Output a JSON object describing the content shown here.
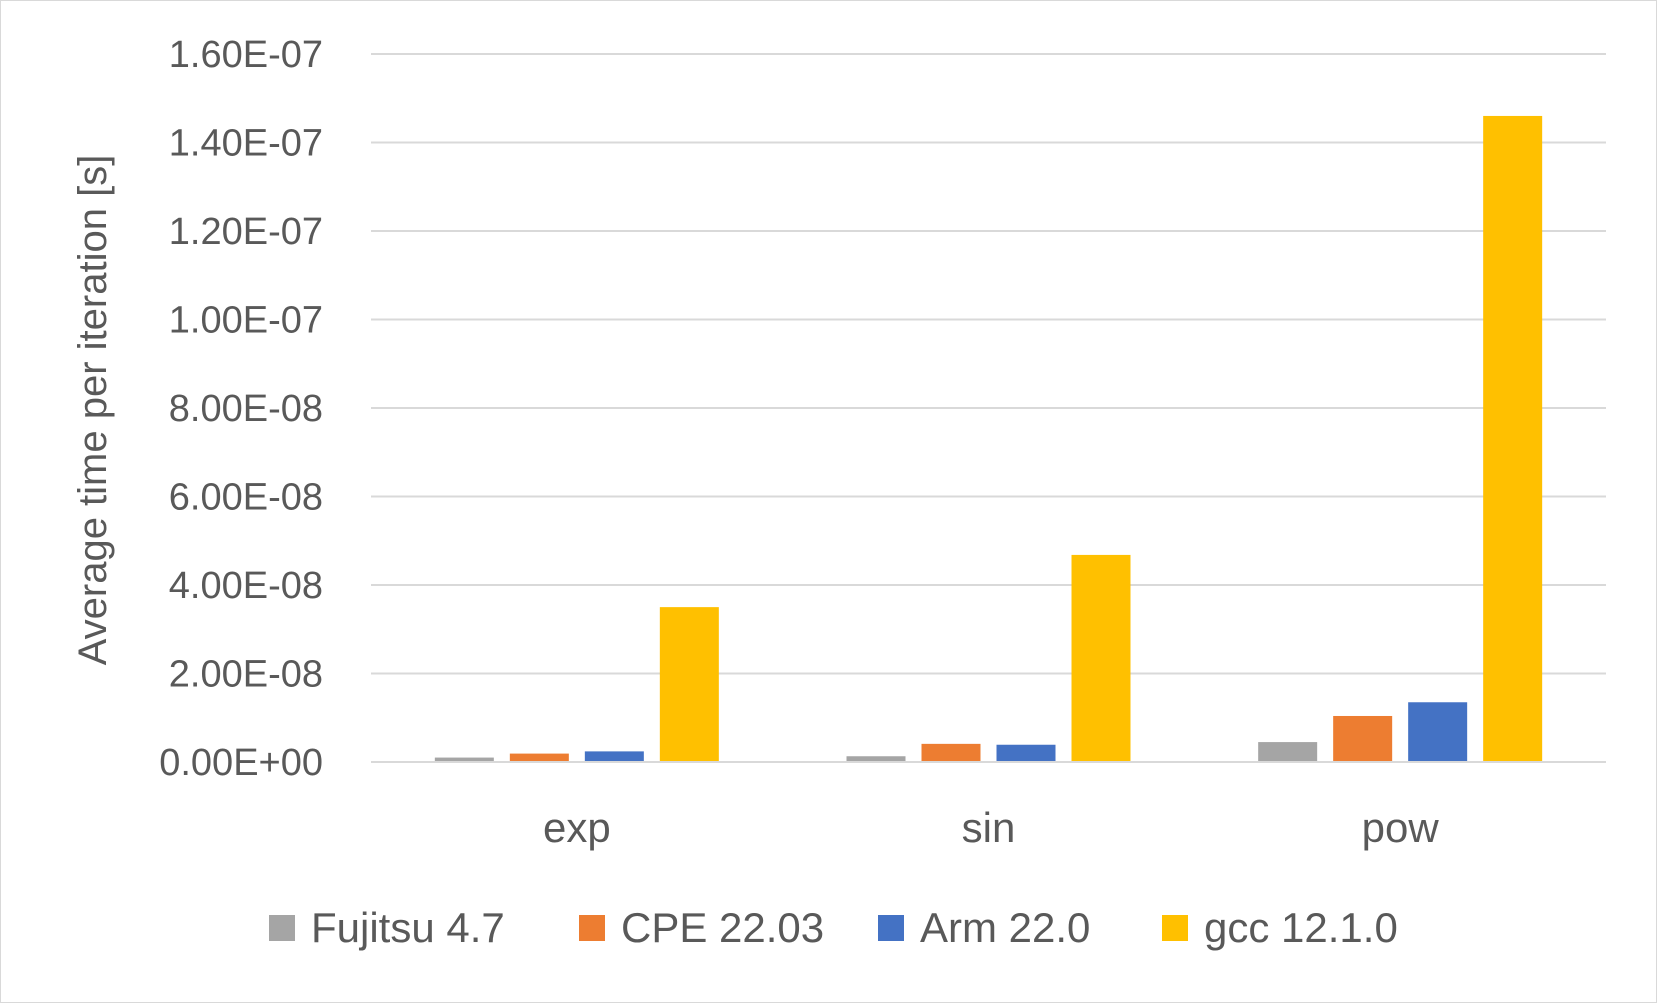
{
  "chart_data": {
    "type": "bar",
    "categories": [
      "exp",
      "sin",
      "pow"
    ],
    "series": [
      {
        "name": "Fujitsu 4.7",
        "color": "#a5a5a5",
        "values": [
          1e-09,
          1.3e-09,
          4.5e-09
        ]
      },
      {
        "name": "CPE 22.03",
        "color": "#ed7d31",
        "values": [
          1.9e-09,
          4.1e-09,
          1.04e-08
        ]
      },
      {
        "name": "Arm 22.0",
        "color": "#4472c4",
        "values": [
          2.4e-09,
          3.9e-09,
          1.35e-08
        ]
      },
      {
        "name": "gcc 12.1.0",
        "color": "#ffc000",
        "values": [
          3.5e-08,
          4.68e-08,
          1.46e-07
        ]
      }
    ],
    "yticks": [
      "0.00E+00",
      "2.00E-08",
      "4.00E-08",
      "6.00E-08",
      "8.00E-08",
      "1.00E-07",
      "1.20E-07",
      "1.40E-07",
      "1.60E-07"
    ],
    "ylim": [
      0,
      1.6e-07
    ],
    "ylabel": "Average time per iteration [s]",
    "xlabel": "",
    "title": "",
    "grid": true,
    "legend_position": "bottom"
  }
}
